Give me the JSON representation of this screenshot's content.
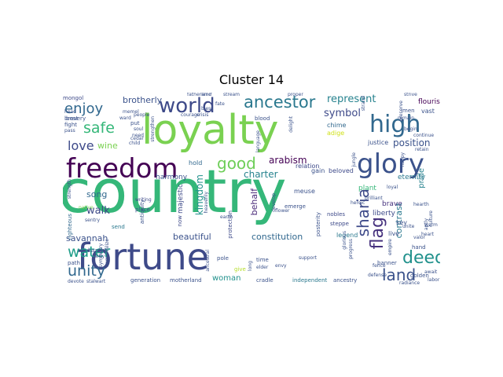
{
  "figure": {
    "title": "Cluster 14"
  },
  "wordcloud": {
    "colormap": "viridis",
    "words": [
      {
        "text": "country",
        "color": "#35b779"
      },
      {
        "text": "fortune",
        "color": "#3e4a89"
      },
      {
        "text": "loyalty",
        "color": "#7ad151"
      },
      {
        "text": "freedom",
        "color": "#440154"
      },
      {
        "text": "glory",
        "color": "#3b528b"
      },
      {
        "text": "world",
        "color": "#3e4a89"
      },
      {
        "text": "high",
        "color": "#31688e"
      },
      {
        "text": "ancestor",
        "color": "#2a788e"
      },
      {
        "text": "good",
        "color": "#6ece58"
      },
      {
        "text": "flag",
        "color": "#46327e"
      },
      {
        "text": "sharia",
        "color": "#3e4a89"
      },
      {
        "text": "deed",
        "color": "#21918c"
      },
      {
        "text": "land",
        "color": "#3b528b"
      },
      {
        "text": "water",
        "color": "#1f9e89"
      },
      {
        "text": "unity",
        "color": "#31688e"
      },
      {
        "text": "safe",
        "color": "#35b779"
      },
      {
        "text": "enjoy",
        "color": "#31688e"
      },
      {
        "text": "love",
        "color": "#3e4a89"
      },
      {
        "text": "represent",
        "color": "#26828e"
      },
      {
        "text": "symbol",
        "color": "#3e4a89"
      },
      {
        "text": "position",
        "color": "#3b528b"
      },
      {
        "text": "arabism",
        "color": "#440154"
      },
      {
        "text": "charter",
        "color": "#26828e"
      },
      {
        "text": "kingdom",
        "color": "#21918c"
      },
      {
        "text": "behalf",
        "color": "#482878"
      },
      {
        "text": "constitution",
        "color": "#31688e"
      },
      {
        "text": "beautiful",
        "color": "#3b528b"
      },
      {
        "text": "savannah",
        "color": "#3b528b"
      },
      {
        "text": "walk",
        "color": "#3e4a89"
      },
      {
        "text": "song",
        "color": "#31688e"
      },
      {
        "text": "woman",
        "color": "#21918c"
      },
      {
        "text": "contrast",
        "color": "#2a788e"
      },
      {
        "text": "pride",
        "color": "#26828e"
      },
      {
        "text": "brotherly",
        "color": "#3b528b"
      },
      {
        "text": "wine",
        "color": "#7ad151"
      },
      {
        "text": "majestic",
        "color": "#3e4a89"
      },
      {
        "text": "harmony",
        "color": "#3b528b"
      },
      {
        "text": "eternity",
        "color": "#2a788e"
      },
      {
        "text": "plant",
        "color": "#35b779"
      },
      {
        "text": "brave",
        "color": "#46327e"
      },
      {
        "text": "liberty",
        "color": "#3e4a89"
      },
      {
        "text": "justice",
        "color": "#3b528b"
      },
      {
        "text": "flourish",
        "color": "#440154"
      },
      {
        "text": "hold",
        "color": "#31688e"
      },
      {
        "text": "chime",
        "color": "#31688e"
      },
      {
        "text": "adige",
        "color": "#d0e11c"
      },
      {
        "text": "meuse",
        "color": "#3b528b"
      },
      {
        "text": "beloved",
        "color": "#3e4a89"
      },
      {
        "text": "gain",
        "color": "#3b528b"
      },
      {
        "text": "relation",
        "color": "#3e4a89"
      },
      {
        "text": "legend",
        "color": "#2a788e"
      },
      {
        "text": "live",
        "color": "#3b528b"
      },
      {
        "text": "key",
        "color": "#3b528b"
      },
      {
        "text": "mongol",
        "color": "#3e4a89"
      },
      {
        "text": "bravery",
        "color": "#3b528b"
      },
      {
        "text": "fight",
        "color": "#3b528b"
      },
      {
        "text": "righteous",
        "color": "#31688e"
      },
      {
        "text": "antiquity",
        "color": "#3b528b"
      },
      {
        "text": "place",
        "color": "#3b528b"
      },
      {
        "text": "send",
        "color": "#2a788e"
      },
      {
        "text": "native",
        "color": "#7ad151"
      },
      {
        "text": "writing",
        "color": "#3e4a89"
      },
      {
        "text": "kazakh",
        "color": "#3b528b"
      },
      {
        "text": "path",
        "color": "#3b528b"
      },
      {
        "text": "pole",
        "color": "#3b528b"
      },
      {
        "text": "time",
        "color": "#3b528b"
      },
      {
        "text": "long",
        "color": "#3b528b"
      },
      {
        "text": "give",
        "color": "#b5de2b"
      },
      {
        "text": "cradle",
        "color": "#3b528b"
      },
      {
        "text": "independent",
        "color": "#2a788e"
      },
      {
        "text": "ancestry",
        "color": "#3b528b"
      },
      {
        "text": "motherland",
        "color": "#3b528b"
      },
      {
        "text": "generation",
        "color": "#3b528b"
      },
      {
        "text": "golden",
        "color": "#3b528b"
      },
      {
        "text": "banner",
        "color": "#3b528b"
      },
      {
        "text": "hand",
        "color": "#3b528b"
      },
      {
        "text": "steppe",
        "color": "#3e4a89"
      },
      {
        "text": "nobles",
        "color": "#3e4a89"
      },
      {
        "text": "posterity",
        "color": "#3b528b"
      },
      {
        "text": "emerge",
        "color": "#3b528b"
      },
      {
        "text": "protection",
        "color": "#3e4a89"
      },
      {
        "text": "now",
        "color": "#3e4a89"
      },
      {
        "text": "ancestral",
        "color": "#3b528b"
      },
      {
        "text": "blood",
        "color": "#3b528b"
      },
      {
        "text": "language",
        "color": "#3b528b"
      },
      {
        "text": "delight",
        "color": "#3b528b"
      },
      {
        "text": "develop",
        "color": "#3b528b"
      },
      {
        "text": "envy",
        "color": "#3b528b"
      },
      {
        "text": "support",
        "color": "#3b528b"
      },
      {
        "text": "glorious",
        "color": "#3b528b"
      },
      {
        "text": "brilliant",
        "color": "#3b528b"
      },
      {
        "text": "culture",
        "color": "#3b528b"
      },
      {
        "text": "fence",
        "color": "#3b528b"
      },
      {
        "text": "progress",
        "color": "#3b528b"
      },
      {
        "text": "empire",
        "color": "#3b528b"
      },
      {
        "text": "radiance",
        "color": "#3b528b"
      },
      {
        "text": "labor",
        "color": "#3b528b"
      },
      {
        "text": "await",
        "color": "#3b528b"
      },
      {
        "text": "valor",
        "color": "#3b528b"
      },
      {
        "text": "retain",
        "color": "#3b528b"
      },
      {
        "text": "begin",
        "color": "#3b528b"
      },
      {
        "text": "continue",
        "color": "#3b528b"
      },
      {
        "text": "vast",
        "color": "#3b528b"
      },
      {
        "text": "men",
        "color": "#3b528b"
      },
      {
        "text": "strive",
        "color": "#3b528b"
      },
      {
        "text": "fatherland",
        "color": "#3b528b"
      },
      {
        "text": "memel",
        "color": "#3b528b"
      },
      {
        "text": "proper",
        "color": "#3b528b"
      },
      {
        "text": "strength",
        "color": "#3b528b"
      },
      {
        "text": "devote",
        "color": "#3b528b"
      },
      {
        "text": "stalwart",
        "color": "#3b528b"
      },
      {
        "text": "heroic",
        "color": "#3b528b"
      },
      {
        "text": "earth",
        "color": "#3b528b"
      },
      {
        "text": "cedar",
        "color": "#3b528b"
      },
      {
        "text": "head",
        "color": "#3b528b"
      },
      {
        "text": "pass",
        "color": "#3b528b"
      },
      {
        "text": "people",
        "color": "#3b528b"
      },
      {
        "text": "child",
        "color": "#3b528b"
      },
      {
        "text": "strengthen",
        "color": "#3b528b"
      },
      {
        "text": "heavenly",
        "color": "#3b528b"
      },
      {
        "text": "sentry",
        "color": "#3b528b"
      },
      {
        "text": "symmetry",
        "color": "#3b528b"
      },
      {
        "text": "immortalize",
        "color": "#3b528b"
      },
      {
        "text": "fairly",
        "color": "#3b528b"
      },
      {
        "text": "hearth",
        "color": "#3b528b"
      },
      {
        "text": "aptly",
        "color": "#3b528b"
      },
      {
        "text": "jungle",
        "color": "#3b528b"
      },
      {
        "text": "defense",
        "color": "#3b528b"
      },
      {
        "text": "elder",
        "color": "#3b528b"
      },
      {
        "text": "courage",
        "color": "#3b528b"
      },
      {
        "text": "stream",
        "color": "#3b528b"
      },
      {
        "text": "bless",
        "color": "#3b528b"
      },
      {
        "text": "amir",
        "color": "#3b528b"
      },
      {
        "text": "ward",
        "color": "#3b528b"
      },
      {
        "text": "soul",
        "color": "#3b528b"
      },
      {
        "text": "remain",
        "color": "#3b528b"
      },
      {
        "text": "flower",
        "color": "#3b528b"
      },
      {
        "text": "need",
        "color": "#3b528b"
      },
      {
        "text": "put",
        "color": "#3b528b"
      },
      {
        "text": "best",
        "color": "#3b528b"
      },
      {
        "text": "heart",
        "color": "#3b528b"
      },
      {
        "text": "unite",
        "color": "#3b528b"
      },
      {
        "text": "warm",
        "color": "#3b528b"
      },
      {
        "text": "fate",
        "color": "#3b528b"
      },
      {
        "text": "crisis",
        "color": "#3b528b"
      },
      {
        "text": "strand",
        "color": "#3b528b"
      },
      {
        "text": "preserve",
        "color": "#3b528b"
      },
      {
        "text": "happy",
        "color": "#3b528b"
      },
      {
        "text": "loyal",
        "color": "#3b528b"
      }
    ]
  }
}
